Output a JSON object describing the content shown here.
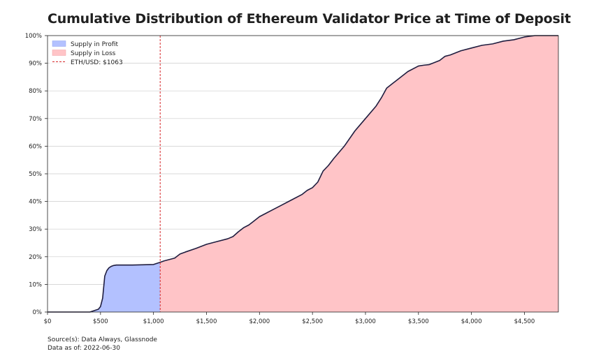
{
  "chart_data": {
    "type": "area",
    "title": "Cumulative Distribution of Ethereum Validator Price at Time of Deposit",
    "xlabel": "",
    "ylabel": "",
    "xlim": [
      0,
      4820
    ],
    "ylim": [
      0,
      100
    ],
    "x_ticks": [
      0,
      500,
      1000,
      1500,
      2000,
      2500,
      3000,
      3500,
      4000,
      4500
    ],
    "x_tick_labels": [
      "$0",
      "$500",
      "$1,000",
      "$1,500",
      "$2,000",
      "$2,500",
      "$3,000",
      "$3,500",
      "$4,000",
      "$4,500"
    ],
    "y_ticks": [
      0,
      10,
      20,
      30,
      40,
      50,
      60,
      70,
      80,
      90,
      100
    ],
    "y_tick_labels": [
      "0%",
      "10%",
      "20%",
      "30%",
      "40%",
      "50%",
      "60%",
      "70%",
      "80%",
      "90%",
      "100%"
    ],
    "grid": "horizontal",
    "legend_position": "top-left",
    "legend": [
      {
        "label": "Supply in Profit",
        "color": "#b3c1ff"
      },
      {
        "label": "Supply in Loss",
        "color": "#ffc4c7"
      },
      {
        "label": "ETH/USD: $1063",
        "color": "#d62728",
        "style": "dashed"
      }
    ],
    "reference_line": {
      "x": 1063,
      "label": "ETH/USD: $1063"
    },
    "series": [
      {
        "name": "Cumulative share of supply",
        "x": [
          0,
          400,
          440,
          480,
          500,
          520,
          540,
          560,
          580,
          600,
          620,
          650,
          680,
          700,
          750,
          800,
          900,
          1000,
          1063,
          1100,
          1200,
          1250,
          1300,
          1400,
          1500,
          1600,
          1700,
          1750,
          1800,
          1850,
          1900,
          1950,
          2000,
          2100,
          2200,
          2300,
          2400,
          2450,
          2500,
          2550,
          2600,
          2650,
          2700,
          2800,
          2900,
          3000,
          3100,
          3150,
          3200,
          3250,
          3300,
          3400,
          3500,
          3550,
          3600,
          3700,
          3750,
          3800,
          3900,
          4000,
          4100,
          4200,
          4300,
          4400,
          4500,
          4600,
          4700,
          4820
        ],
        "y": [
          0,
          0,
          0.5,
          1,
          2,
          5,
          13,
          15,
          16,
          16.5,
          16.8,
          17,
          17,
          17,
          17,
          17,
          17.1,
          17.2,
          18,
          18.5,
          19.5,
          21,
          21.7,
          23,
          24.5,
          25.5,
          26.5,
          27.3,
          29,
          30.5,
          31.5,
          33,
          34.5,
          36.5,
          38.5,
          40.5,
          42.5,
          44,
          45,
          47,
          51,
          53,
          55.5,
          60,
          65.5,
          70,
          74.5,
          77.5,
          81,
          82.5,
          84,
          87,
          89,
          89.3,
          89.5,
          91,
          92.5,
          93,
          94.5,
          95.5,
          96.5,
          97,
          98,
          98.5,
          99.5,
          100,
          100,
          100
        ]
      }
    ]
  },
  "footer": {
    "source": "Source(s): Data Always, Glassnode",
    "date": "Data as of: 2022-06-30"
  },
  "colors": {
    "profit_fill": "#b3c1ff",
    "loss_fill": "#ffc4c7",
    "curve": "#1f1d3f",
    "ref_line": "#d62728",
    "grid": "#cccccc"
  }
}
